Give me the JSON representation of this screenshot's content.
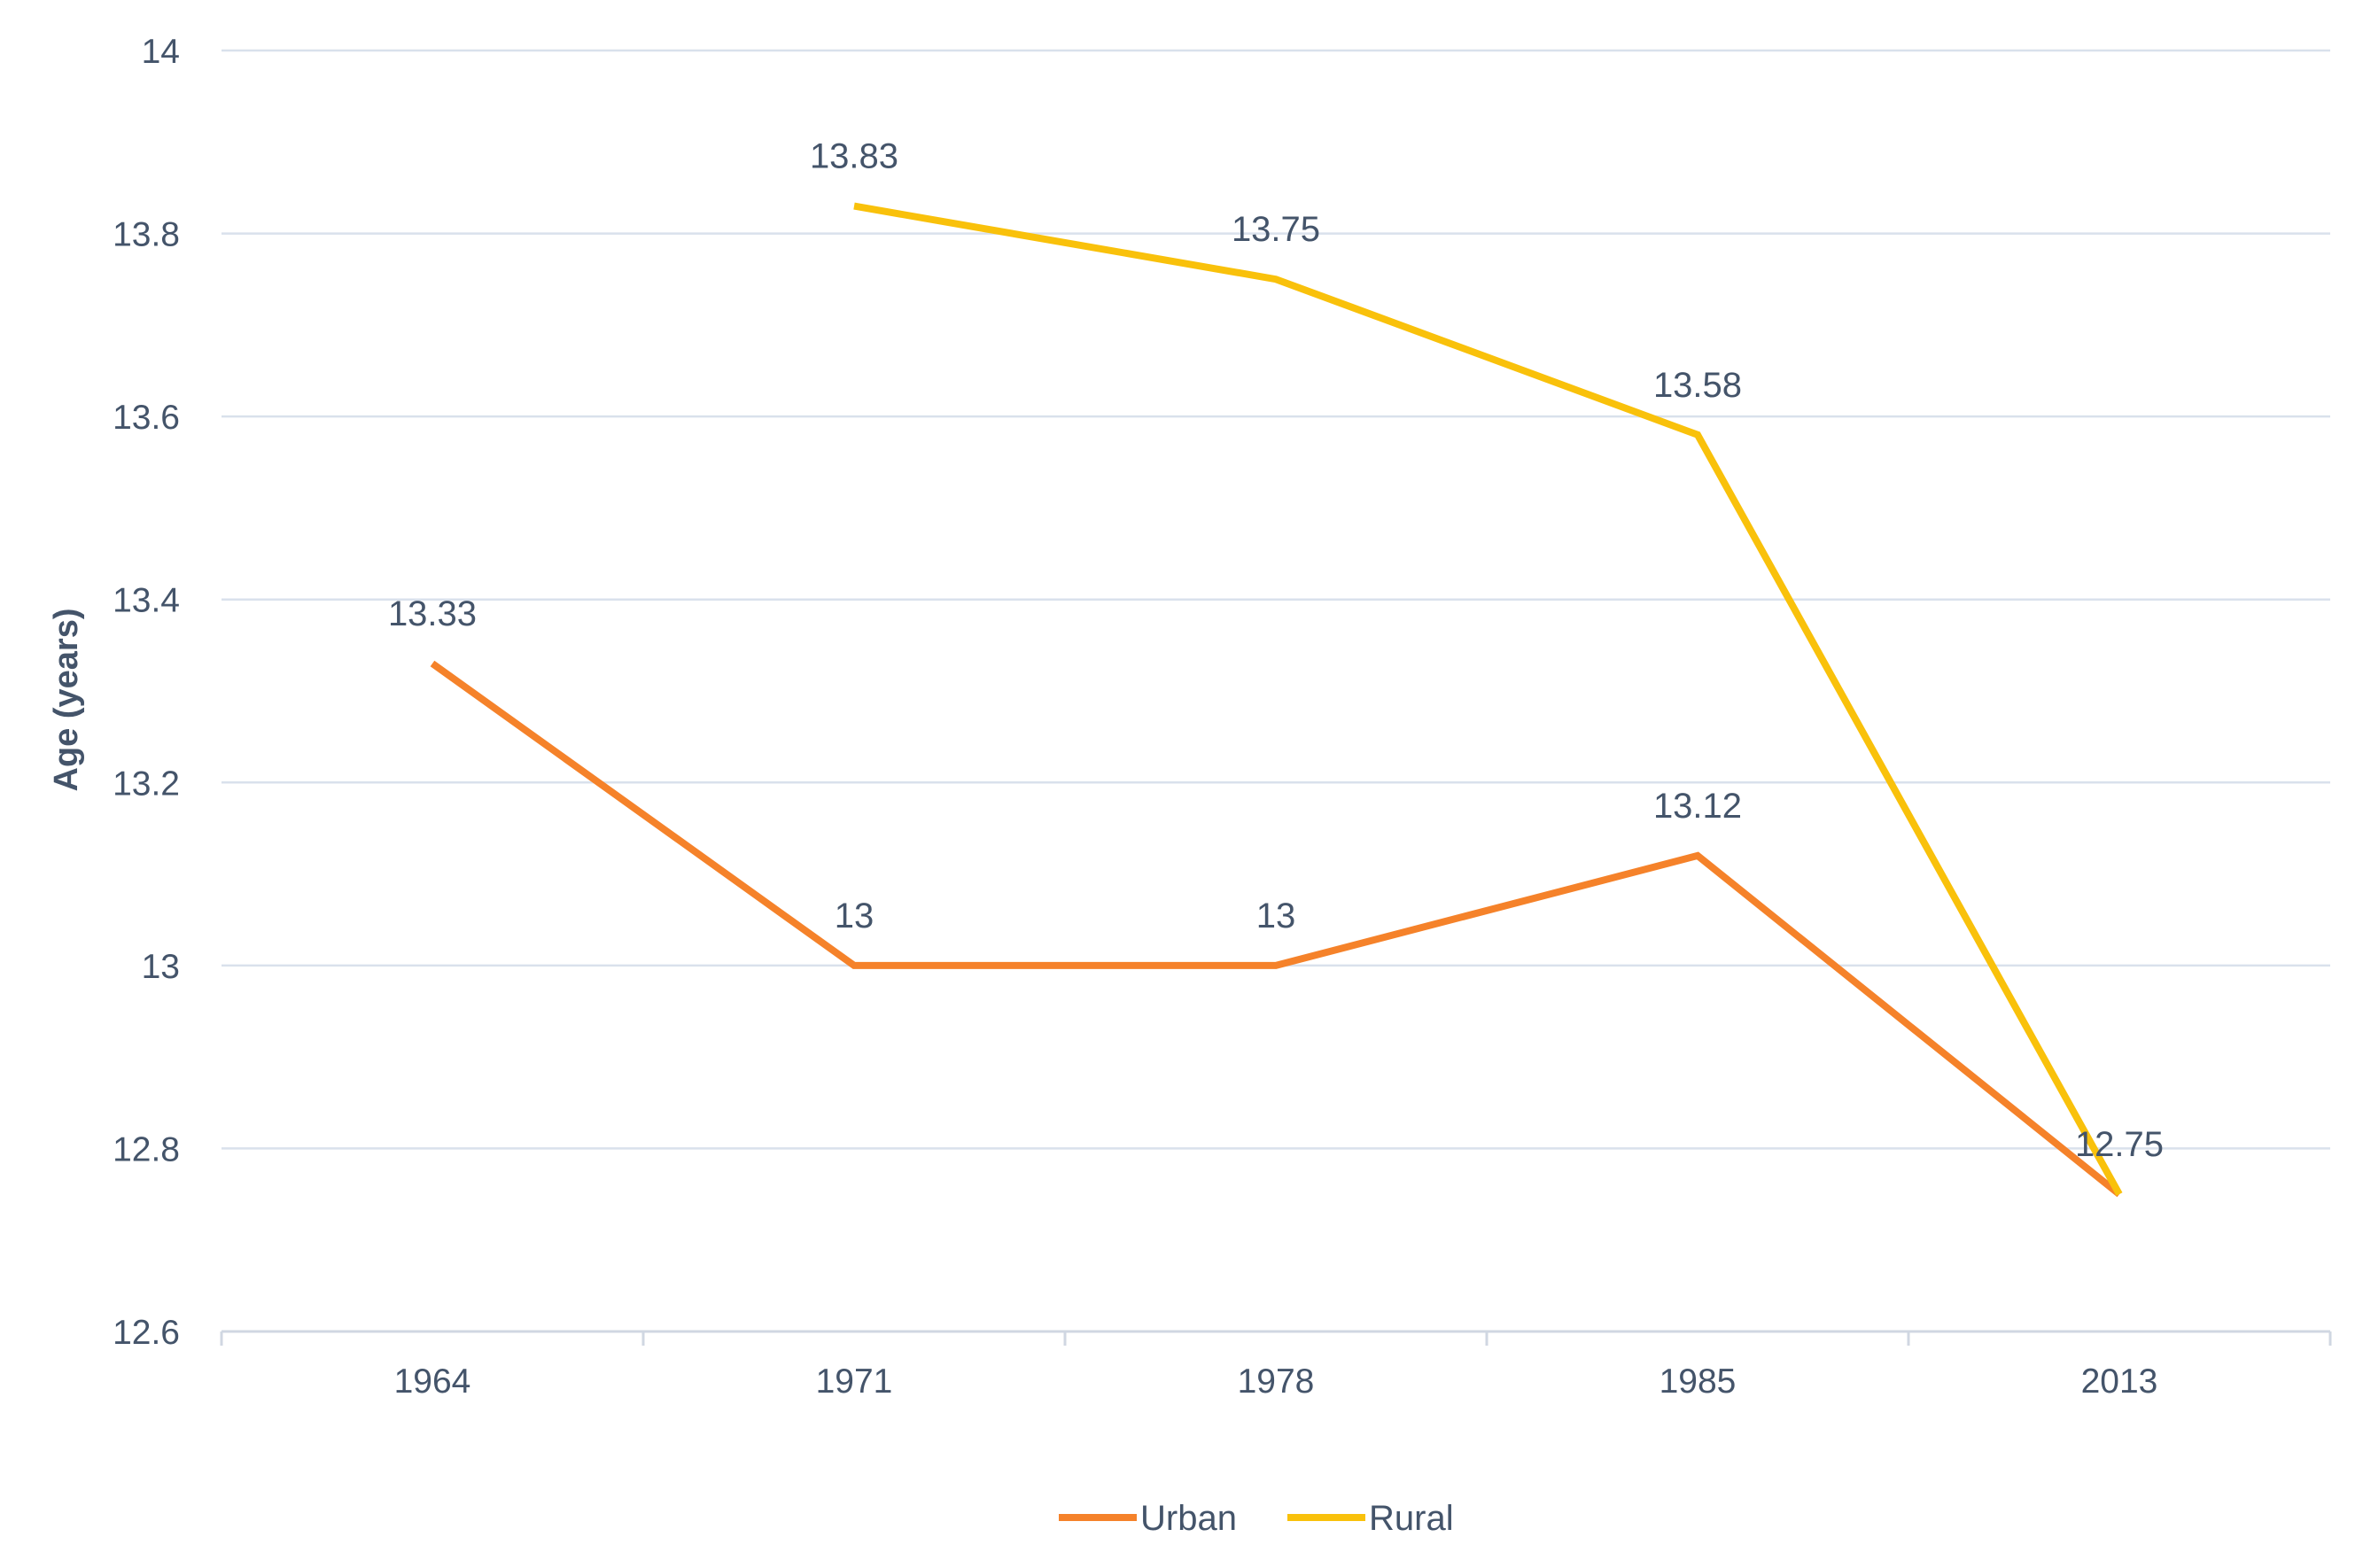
{
  "chart_data": {
    "type": "line",
    "categories": [
      "1964",
      "1971",
      "1978",
      "1985",
      "2013"
    ],
    "series": [
      {
        "name": "Urban",
        "values": [
          13.33,
          13,
          13,
          13.12,
          12.75
        ],
        "labels": [
          "13.33",
          "13",
          "13",
          "13.12",
          ""
        ],
        "color": "#f5822a"
      },
      {
        "name": "Rural",
        "values": [
          null,
          13.83,
          13.75,
          13.58,
          12.75
        ],
        "labels": [
          "",
          "13.83",
          "13.75",
          "13.58",
          "12.75"
        ],
        "color": "#f9c10b"
      }
    ],
    "xlabel": "",
    "ylabel": "Age (years)",
    "ylim": [
      12.6,
      14
    ],
    "yticks": [
      "14",
      "13.8",
      "13.6",
      "13.4",
      "13.2",
      "13",
      "12.8",
      "12.6"
    ],
    "grid": true,
    "legend_position": "bottom-center",
    "gridline_color": "#d9e1ec",
    "text_color": "#44546a"
  }
}
